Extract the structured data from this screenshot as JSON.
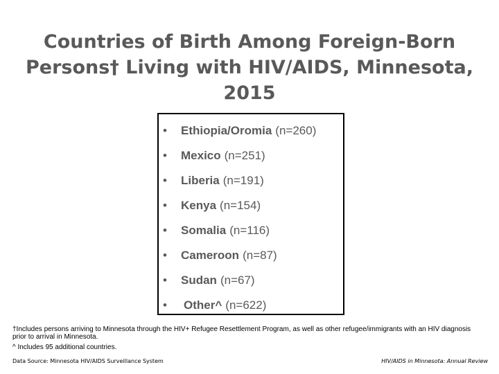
{
  "title": {
    "line1": "Countries of Birth Among Foreign-Born",
    "line2": "Persons† Living with HIV/AIDS, Minnesota,",
    "line3": "2015"
  },
  "bullet_glyph": "•",
  "countries": [
    {
      "name": "Ethiopia/Oromia",
      "count": "(n=260)"
    },
    {
      "name": "Mexico",
      "count": "(n=251)"
    },
    {
      "name": "Liberia",
      "count": "(n=191)"
    },
    {
      "name": "Kenya",
      "count": "(n=154)"
    },
    {
      "name": "Somalia",
      "count": "(n=116)"
    },
    {
      "name": "Cameroon",
      "count": "(n=87)"
    },
    {
      "name": "Sudan",
      "count": "(n=67)"
    },
    {
      "name": "Other^",
      "count": "(n=622)"
    }
  ],
  "footnotes": {
    "dagger": "†Includes persons arriving to Minnesota through the HIV+ Refugee Resettlement Program, as well as other refugee/immigrants with an HIV diagnosis prior to arrival in Minnesota.",
    "caret": "^ Includes 95 additional countries."
  },
  "footer": {
    "source": "Data Source: Minnesota HIV/AIDS Surveillance System",
    "publication": "HIV/AIDS in Minnesota: Annual Review"
  },
  "colors": {
    "text_gray": "#595959",
    "border": "#000000",
    "background": "#ffffff"
  }
}
